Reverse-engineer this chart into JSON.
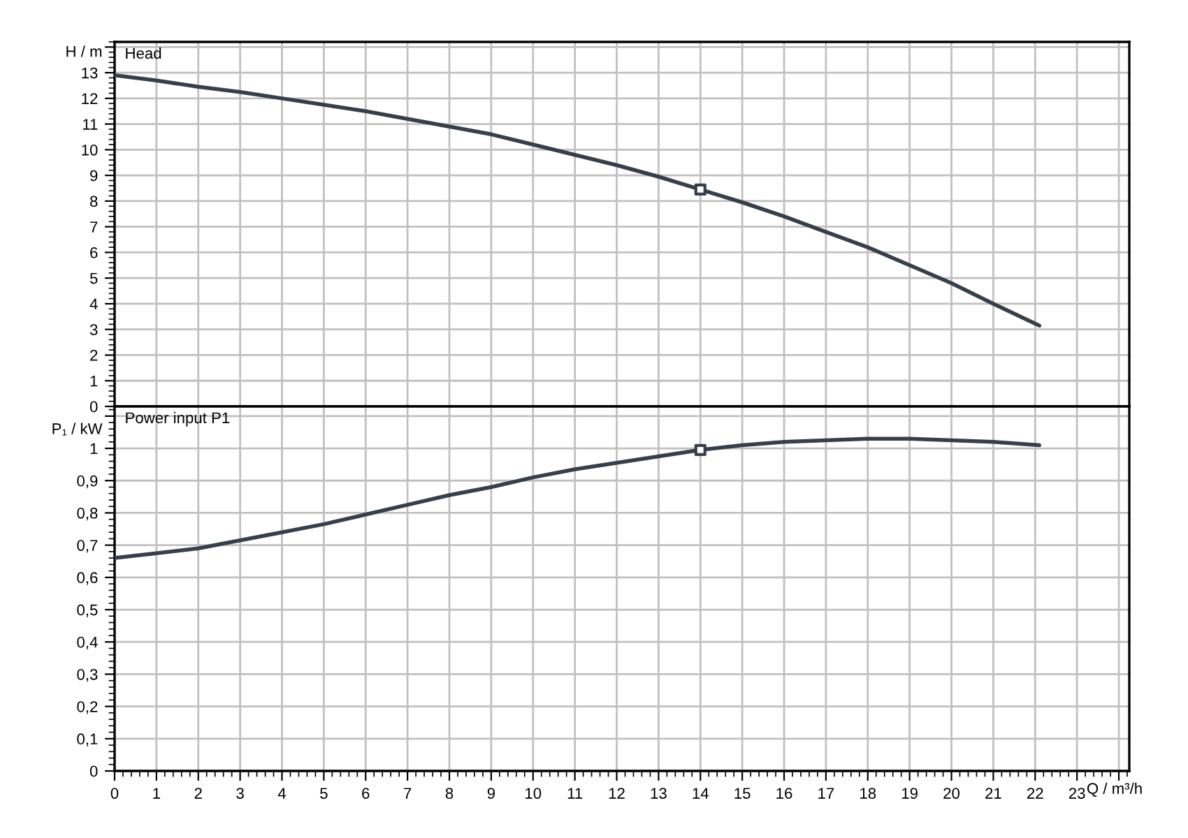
{
  "chart_data": [
    {
      "type": "line",
      "title": "Head",
      "ylabel": "H / m",
      "tick_labels": "y",
      "grid": true,
      "line_style": "solid",
      "marker": "none",
      "xlim": [
        0,
        24.25
      ],
      "xticks": [
        0,
        1,
        2,
        3,
        4,
        5,
        6,
        7,
        8,
        9,
        10,
        11,
        12,
        13,
        14,
        15,
        16,
        17,
        18,
        19,
        20,
        21,
        22,
        23,
        {
          "value": 24,
          "label": null
        }
      ],
      "ylim": [
        0,
        14.2
      ],
      "yticks": [
        0,
        1,
        2,
        3,
        4,
        5,
        6,
        7,
        8,
        9,
        10,
        11,
        12,
        13,
        {
          "value": 14,
          "label": null
        }
      ],
      "series": [
        {
          "color": "#37404a",
          "x": [
            0,
            1,
            2,
            3,
            4,
            5,
            6,
            7,
            8,
            9,
            10,
            11,
            12,
            13,
            14,
            15,
            16,
            17,
            18,
            19,
            20,
            21,
            22.1
          ],
          "values": [
            12.9,
            12.7,
            12.45,
            12.25,
            12.0,
            11.75,
            11.5,
            11.2,
            10.9,
            10.6,
            10.2,
            9.8,
            9.4,
            8.95,
            8.45,
            7.95,
            7.4,
            6.8,
            6.2,
            5.5,
            4.8,
            4.0,
            3.15
          ]
        },
        {
          "type": "scatter",
          "marker": "square",
          "color": "#37404a",
          "x": [
            14
          ],
          "values": [
            8.45
          ]
        }
      ]
    },
    {
      "type": "line",
      "title": "Power input P1",
      "ylabel": "P₁ / kW",
      "xlabel": "Q / m³/h",
      "grid": true,
      "line_style": "solid",
      "marker": "none",
      "xlim": [
        0,
        24.25
      ],
      "xticks": [
        0,
        1,
        2,
        3,
        4,
        5,
        6,
        7,
        8,
        9,
        10,
        11,
        12,
        13,
        14,
        15,
        16,
        17,
        18,
        19,
        20,
        21,
        22,
        23,
        {
          "value": 24,
          "label": null
        }
      ],
      "ylim": [
        0,
        1.13
      ],
      "yticks": [
        0,
        {
          "value": 0.1,
          "label": "0,1"
        },
        {
          "value": 0.2,
          "label": "0,2"
        },
        {
          "value": 0.3,
          "label": "0,3"
        },
        {
          "value": 0.4,
          "label": "0,4"
        },
        {
          "value": 0.5,
          "label": "0,5"
        },
        {
          "value": 0.6,
          "label": "0,6"
        },
        {
          "value": 0.7,
          "label": "0,7"
        },
        {
          "value": 0.8,
          "label": "0,8"
        },
        {
          "value": 0.9,
          "label": "0,9"
        },
        1,
        {
          "value": 1.1,
          "label": null
        }
      ],
      "series": [
        {
          "color": "#37404a",
          "x": [
            0,
            1,
            2,
            3,
            4,
            5,
            6,
            7,
            8,
            9,
            10,
            11,
            12,
            13,
            14,
            15,
            16,
            17,
            18,
            19,
            20,
            21,
            22.1
          ],
          "values": [
            0.66,
            0.675,
            0.69,
            0.715,
            0.74,
            0.765,
            0.795,
            0.825,
            0.855,
            0.88,
            0.91,
            0.935,
            0.955,
            0.975,
            0.995,
            1.01,
            1.02,
            1.025,
            1.03,
            1.03,
            1.025,
            1.02,
            1.01
          ]
        },
        {
          "type": "scatter",
          "marker": "square",
          "color": "#37404a",
          "x": [
            14
          ],
          "values": [
            0.995
          ]
        }
      ]
    }
  ]
}
